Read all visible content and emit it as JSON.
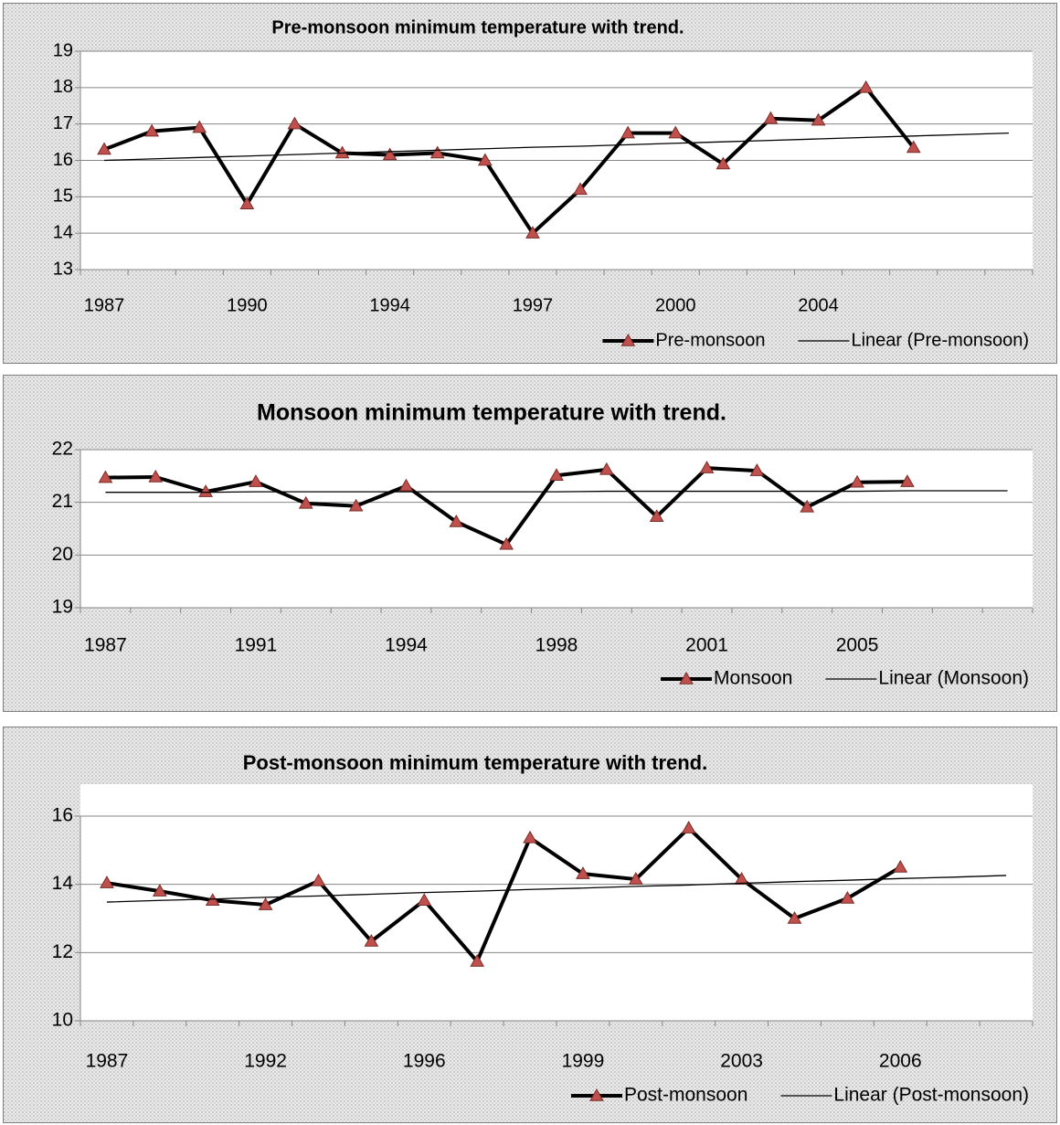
{
  "chart_data": [
    {
      "type": "line",
      "title": "Pre-monsoon minimum temperature with trend.",
      "categories": [
        "1987",
        null,
        null,
        "1990",
        null,
        null,
        "1994",
        null,
        null,
        "1997",
        null,
        null,
        "2000",
        null,
        null,
        "2004",
        null,
        null,
        null,
        null
      ],
      "series": [
        {
          "name": "Pre-monsoon",
          "color": "#000000",
          "marker": "triangle",
          "marker_color": "#c0504d",
          "values": [
            16.3,
            16.8,
            16.9,
            14.8,
            17.0,
            16.2,
            16.15,
            16.2,
            16.0,
            14.0,
            15.2,
            16.75,
            16.75,
            15.9,
            17.15,
            17.1,
            18.0,
            16.35,
            null,
            null
          ]
        },
        {
          "name": "Linear (Pre-monsoon)",
          "color": "#000000",
          "trendline": true,
          "values": [
            16.0,
            16.04,
            16.08,
            16.12,
            16.16,
            16.2,
            16.24,
            16.28,
            16.32,
            16.36,
            16.39,
            16.43,
            16.47,
            16.51,
            16.55,
            16.59,
            16.63,
            16.67,
            16.71,
            16.75
          ]
        }
      ],
      "ylim": [
        13,
        19
      ],
      "yticks": [
        13,
        14,
        15,
        16,
        17,
        18,
        19
      ],
      "grid": true,
      "legend": "bottom-right"
    },
    {
      "type": "line",
      "title": "Monsoon minimum temperature with trend.",
      "categories": [
        "1987",
        null,
        null,
        "1991",
        null,
        null,
        "1994",
        null,
        null,
        "1998",
        null,
        null,
        "2001",
        null,
        null,
        "2005",
        null,
        null,
        null
      ],
      "series": [
        {
          "name": "Monsoon",
          "color": "#000000",
          "marker": "triangle",
          "marker_color": "#c0504d",
          "values": [
            21.47,
            21.48,
            21.2,
            21.39,
            20.98,
            20.93,
            21.31,
            20.63,
            20.2,
            21.51,
            21.62,
            20.73,
            21.65,
            21.6,
            20.91,
            21.38,
            21.39,
            null,
            null
          ]
        },
        {
          "name": "Linear (Monsoon)",
          "color": "#000000",
          "trendline": true,
          "values": [
            21.19,
            21.19,
            21.19,
            21.2,
            21.2,
            21.2,
            21.2,
            21.2,
            21.2,
            21.2,
            21.21,
            21.21,
            21.21,
            21.21,
            21.21,
            21.21,
            21.22,
            21.22,
            21.22
          ]
        }
      ],
      "ylim": [
        19,
        22
      ],
      "yticks": [
        19,
        20,
        21,
        22
      ],
      "grid": true,
      "legend": "bottom-right"
    },
    {
      "type": "line",
      "title": "Post-monsoon minimum temperature with trend.",
      "categories": [
        "1987",
        null,
        null,
        "1992",
        null,
        null,
        "1996",
        null,
        null,
        "1999",
        null,
        null,
        "2003",
        null,
        null,
        "2006",
        null,
        null
      ],
      "series": [
        {
          "name": "Post-monsoon",
          "color": "#000000",
          "marker": "triangle",
          "marker_color": "#c0504d",
          "values": [
            14.04,
            13.8,
            13.53,
            13.4,
            14.1,
            12.33,
            13.53,
            11.74,
            15.36,
            14.31,
            14.15,
            15.65,
            14.15,
            13.0,
            13.59,
            14.5,
            null,
            null
          ]
        },
        {
          "name": "Linear (Post-monsoon)",
          "color": "#000000",
          "trendline": true,
          "values": [
            13.48,
            13.53,
            13.57,
            13.62,
            13.66,
            13.71,
            13.76,
            13.8,
            13.85,
            13.89,
            13.94,
            13.98,
            14.03,
            14.08,
            14.12,
            14.17,
            14.21,
            14.26
          ]
        }
      ],
      "ylim": [
        10,
        16
      ],
      "yticks": [
        10,
        12,
        14,
        16
      ],
      "grid": true,
      "legend": "bottom-right"
    }
  ]
}
